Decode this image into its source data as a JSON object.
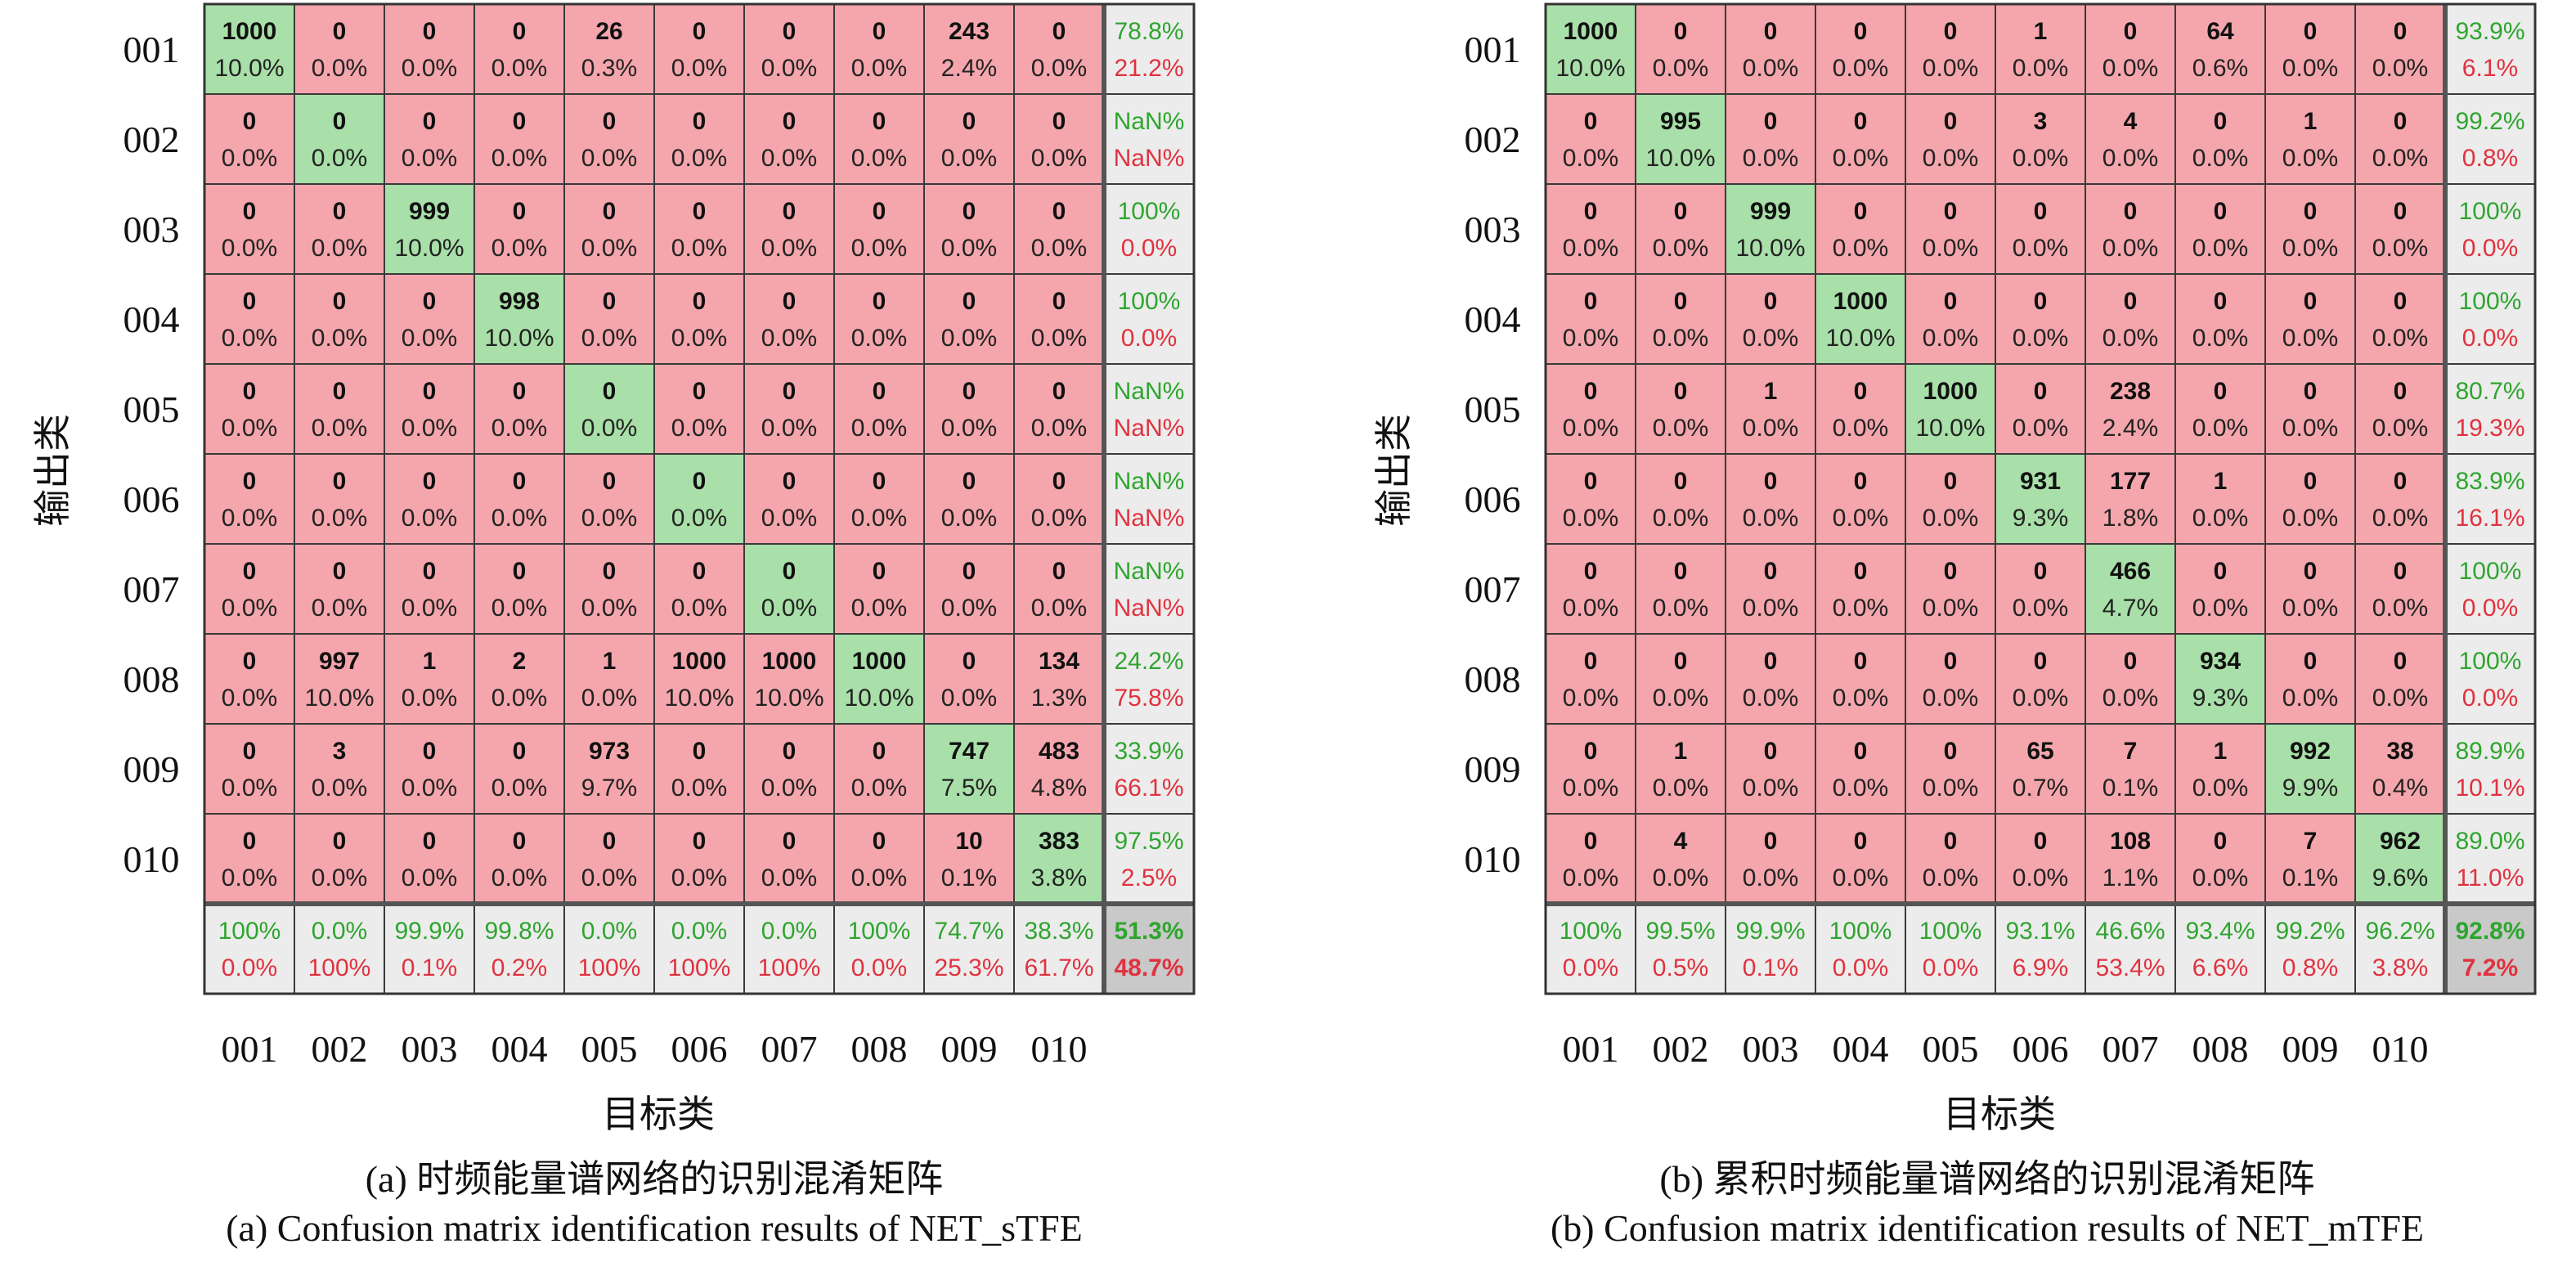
{
  "colors": {
    "diag": "#a9dfa8",
    "off": "#f4a6ac",
    "summary": "#ececec",
    "overall": "#c9c9c9",
    "green_text": "#2ea52e",
    "red_text": "#e0323f",
    "grid": "#3a3a3a"
  },
  "chart_data": [
    {
      "type": "heatmap",
      "title": "",
      "xlabel": "目标类",
      "ylabel": "输出类",
      "x_categories": [
        "001",
        "002",
        "003",
        "004",
        "005",
        "006",
        "007",
        "008",
        "009",
        "010"
      ],
      "y_categories": [
        "001",
        "002",
        "003",
        "004",
        "005",
        "006",
        "007",
        "008",
        "009",
        "010"
      ],
      "counts": [
        [
          1000,
          0,
          0,
          0,
          26,
          0,
          0,
          0,
          243,
          0
        ],
        [
          0,
          0,
          0,
          0,
          0,
          0,
          0,
          0,
          0,
          0
        ],
        [
          0,
          0,
          999,
          0,
          0,
          0,
          0,
          0,
          0,
          0
        ],
        [
          0,
          0,
          0,
          998,
          0,
          0,
          0,
          0,
          0,
          0
        ],
        [
          0,
          0,
          0,
          0,
          0,
          0,
          0,
          0,
          0,
          0
        ],
        [
          0,
          0,
          0,
          0,
          0,
          0,
          0,
          0,
          0,
          0
        ],
        [
          0,
          0,
          0,
          0,
          0,
          0,
          0,
          0,
          0,
          0
        ],
        [
          0,
          997,
          1,
          2,
          1,
          1000,
          1000,
          1000,
          0,
          134
        ],
        [
          0,
          3,
          0,
          0,
          973,
          0,
          0,
          0,
          747,
          483
        ],
        [
          0,
          0,
          0,
          0,
          0,
          0,
          0,
          0,
          10,
          383
        ]
      ],
      "percents": [
        [
          "10.0%",
          "0.0%",
          "0.0%",
          "0.0%",
          "0.3%",
          "0.0%",
          "0.0%",
          "0.0%",
          "2.4%",
          "0.0%"
        ],
        [
          "0.0%",
          "0.0%",
          "0.0%",
          "0.0%",
          "0.0%",
          "0.0%",
          "0.0%",
          "0.0%",
          "0.0%",
          "0.0%"
        ],
        [
          "0.0%",
          "0.0%",
          "10.0%",
          "0.0%",
          "0.0%",
          "0.0%",
          "0.0%",
          "0.0%",
          "0.0%",
          "0.0%"
        ],
        [
          "0.0%",
          "0.0%",
          "0.0%",
          "10.0%",
          "0.0%",
          "0.0%",
          "0.0%",
          "0.0%",
          "0.0%",
          "0.0%"
        ],
        [
          "0.0%",
          "0.0%",
          "0.0%",
          "0.0%",
          "0.0%",
          "0.0%",
          "0.0%",
          "0.0%",
          "0.0%",
          "0.0%"
        ],
        [
          "0.0%",
          "0.0%",
          "0.0%",
          "0.0%",
          "0.0%",
          "0.0%",
          "0.0%",
          "0.0%",
          "0.0%",
          "0.0%"
        ],
        [
          "0.0%",
          "0.0%",
          "0.0%",
          "0.0%",
          "0.0%",
          "0.0%",
          "0.0%",
          "0.0%",
          "0.0%",
          "0.0%"
        ],
        [
          "0.0%",
          "10.0%",
          "0.0%",
          "0.0%",
          "0.0%",
          "10.0%",
          "10.0%",
          "10.0%",
          "0.0%",
          "1.3%"
        ],
        [
          "0.0%",
          "0.0%",
          "0.0%",
          "0.0%",
          "9.7%",
          "0.0%",
          "0.0%",
          "0.0%",
          "7.5%",
          "4.8%"
        ],
        [
          "0.0%",
          "0.0%",
          "0.0%",
          "0.0%",
          "0.0%",
          "0.0%",
          "0.0%",
          "0.0%",
          "0.1%",
          "3.8%"
        ]
      ],
      "row_summary": [
        [
          "78.8%",
          "21.2%"
        ],
        [
          "NaN%",
          "NaN%"
        ],
        [
          "100%",
          "0.0%"
        ],
        [
          "100%",
          "0.0%"
        ],
        [
          "NaN%",
          "NaN%"
        ],
        [
          "NaN%",
          "NaN%"
        ],
        [
          "NaN%",
          "NaN%"
        ],
        [
          "24.2%",
          "75.8%"
        ],
        [
          "33.9%",
          "66.1%"
        ],
        [
          "97.5%",
          "2.5%"
        ]
      ],
      "col_summary": [
        [
          "100%",
          "0.0%"
        ],
        [
          "0.0%",
          "100%"
        ],
        [
          "99.9%",
          "0.1%"
        ],
        [
          "99.8%",
          "0.2%"
        ],
        [
          "0.0%",
          "100%"
        ],
        [
          "0.0%",
          "100%"
        ],
        [
          "0.0%",
          "100%"
        ],
        [
          "100%",
          "0.0%"
        ],
        [
          "74.7%",
          "25.3%"
        ],
        [
          "38.3%",
          "61.7%"
        ]
      ],
      "overall": [
        "51.3%",
        "48.7%"
      ],
      "caption_cn": "(a) 时频能量谱网络的识别混淆矩阵",
      "caption_en": "(a) Confusion matrix identification results of NET_sTFE"
    },
    {
      "type": "heatmap",
      "title": "",
      "xlabel": "目标类",
      "ylabel": "输出类",
      "x_categories": [
        "001",
        "002",
        "003",
        "004",
        "005",
        "006",
        "007",
        "008",
        "009",
        "010"
      ],
      "y_categories": [
        "001",
        "002",
        "003",
        "004",
        "005",
        "006",
        "007",
        "008",
        "009",
        "010"
      ],
      "counts": [
        [
          1000,
          0,
          0,
          0,
          0,
          1,
          0,
          64,
          0,
          0
        ],
        [
          0,
          995,
          0,
          0,
          0,
          3,
          4,
          0,
          1,
          0
        ],
        [
          0,
          0,
          999,
          0,
          0,
          0,
          0,
          0,
          0,
          0
        ],
        [
          0,
          0,
          0,
          1000,
          0,
          0,
          0,
          0,
          0,
          0
        ],
        [
          0,
          0,
          1,
          0,
          1000,
          0,
          238,
          0,
          0,
          0
        ],
        [
          0,
          0,
          0,
          0,
          0,
          931,
          177,
          1,
          0,
          0
        ],
        [
          0,
          0,
          0,
          0,
          0,
          0,
          466,
          0,
          0,
          0
        ],
        [
          0,
          0,
          0,
          0,
          0,
          0,
          0,
          934,
          0,
          0
        ],
        [
          0,
          1,
          0,
          0,
          0,
          65,
          7,
          1,
          992,
          38
        ],
        [
          0,
          4,
          0,
          0,
          0,
          0,
          108,
          0,
          7,
          962
        ]
      ],
      "percents": [
        [
          "10.0%",
          "0.0%",
          "0.0%",
          "0.0%",
          "0.0%",
          "0.0%",
          "0.0%",
          "0.6%",
          "0.0%",
          "0.0%"
        ],
        [
          "0.0%",
          "10.0%",
          "0.0%",
          "0.0%",
          "0.0%",
          "0.0%",
          "0.0%",
          "0.0%",
          "0.0%",
          "0.0%"
        ],
        [
          "0.0%",
          "0.0%",
          "10.0%",
          "0.0%",
          "0.0%",
          "0.0%",
          "0.0%",
          "0.0%",
          "0.0%",
          "0.0%"
        ],
        [
          "0.0%",
          "0.0%",
          "0.0%",
          "10.0%",
          "0.0%",
          "0.0%",
          "0.0%",
          "0.0%",
          "0.0%",
          "0.0%"
        ],
        [
          "0.0%",
          "0.0%",
          "0.0%",
          "0.0%",
          "10.0%",
          "0.0%",
          "2.4%",
          "0.0%",
          "0.0%",
          "0.0%"
        ],
        [
          "0.0%",
          "0.0%",
          "0.0%",
          "0.0%",
          "0.0%",
          "9.3%",
          "1.8%",
          "0.0%",
          "0.0%",
          "0.0%"
        ],
        [
          "0.0%",
          "0.0%",
          "0.0%",
          "0.0%",
          "0.0%",
          "0.0%",
          "4.7%",
          "0.0%",
          "0.0%",
          "0.0%"
        ],
        [
          "0.0%",
          "0.0%",
          "0.0%",
          "0.0%",
          "0.0%",
          "0.0%",
          "0.0%",
          "9.3%",
          "0.0%",
          "0.0%"
        ],
        [
          "0.0%",
          "0.0%",
          "0.0%",
          "0.0%",
          "0.0%",
          "0.7%",
          "0.1%",
          "0.0%",
          "9.9%",
          "0.4%"
        ],
        [
          "0.0%",
          "0.0%",
          "0.0%",
          "0.0%",
          "0.0%",
          "0.0%",
          "1.1%",
          "0.0%",
          "0.1%",
          "9.6%"
        ]
      ],
      "row_summary": [
        [
          "93.9%",
          "6.1%"
        ],
        [
          "99.2%",
          "0.8%"
        ],
        [
          "100%",
          "0.0%"
        ],
        [
          "100%",
          "0.0%"
        ],
        [
          "80.7%",
          "19.3%"
        ],
        [
          "83.9%",
          "16.1%"
        ],
        [
          "100%",
          "0.0%"
        ],
        [
          "100%",
          "0.0%"
        ],
        [
          "89.9%",
          "10.1%"
        ],
        [
          "89.0%",
          "11.0%"
        ]
      ],
      "col_summary": [
        [
          "100%",
          "0.0%"
        ],
        [
          "99.5%",
          "0.5%"
        ],
        [
          "99.9%",
          "0.1%"
        ],
        [
          "100%",
          "0.0%"
        ],
        [
          "100%",
          "0.0%"
        ],
        [
          "93.1%",
          "6.9%"
        ],
        [
          "46.6%",
          "53.4%"
        ],
        [
          "93.4%",
          "6.6%"
        ],
        [
          "99.2%",
          "0.8%"
        ],
        [
          "96.2%",
          "3.8%"
        ]
      ],
      "overall": [
        "92.8%",
        "7.2%"
      ],
      "caption_cn": "(b) 累积时频能量谱网络的识别混淆矩阵",
      "caption_en": "(b) Confusion matrix identification results of NET_mTFE"
    }
  ]
}
